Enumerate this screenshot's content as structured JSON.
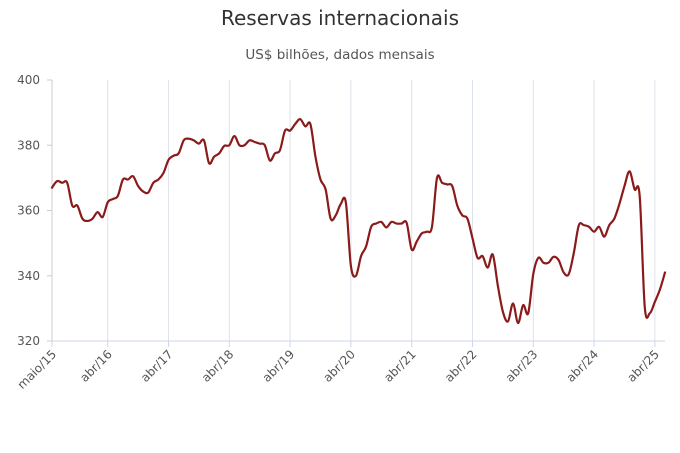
{
  "chart_data": {
    "type": "line",
    "title": "Reservas internacionais",
    "subtitle": "US$ bilhões, dados mensais",
    "xlabel": "",
    "ylabel": "",
    "ylim": [
      320,
      400
    ],
    "yticks": [
      "320",
      "340",
      "360",
      "380",
      "400"
    ],
    "x_tick_labels": [
      "maio/15",
      "abr/16",
      "abr/17",
      "abr/18",
      "abr/19",
      "abr/20",
      "abr/21",
      "abr/22",
      "abr/23",
      "abr/24",
      "abr/25"
    ],
    "x_start": "2015-05",
    "line_color": "#8b1a1a",
    "grid": "vertical",
    "series": [
      {
        "values": [
          367,
          369,
          368.5,
          368.5,
          361.5,
          361.5,
          357.5,
          356.8,
          357.5,
          359.5,
          358,
          362.5,
          363.5,
          364.5,
          369.5,
          369.5,
          370.5,
          367.5,
          365.8,
          365.5,
          368.5,
          369.5,
          371.5,
          375.5,
          376.8,
          377.5,
          381.5,
          382,
          381.5,
          380.5,
          381.5,
          374.5,
          376.5,
          377.5,
          379.8,
          380,
          382.8,
          380,
          380,
          381.5,
          381,
          380.5,
          380,
          375.3,
          377.5,
          378.5,
          384.5,
          384.5,
          386.5,
          388,
          385.8,
          386.5,
          376.5,
          369.5,
          366.5,
          357.5,
          358.5,
          362,
          362.5,
          343,
          340,
          346,
          349,
          355,
          356,
          356.5,
          354.8,
          356.5,
          356,
          356,
          356.2,
          348,
          350.5,
          353,
          353.5,
          355,
          370,
          368.5,
          368,
          367.5,
          361.5,
          358.5,
          357.5,
          351.5,
          345.5,
          346,
          342.5,
          346.5,
          337,
          329,
          326,
          331.5,
          325.5,
          331,
          328.5,
          340.5,
          345.5,
          344,
          344,
          345.8,
          344.8,
          341,
          340.5,
          347,
          355.5,
          355.5,
          355,
          353.5,
          355,
          352,
          355.5,
          357.5,
          362,
          367.5,
          372,
          366.5,
          364.5,
          330.5,
          328.5,
          332,
          335.8,
          341
        ]
      }
    ]
  }
}
